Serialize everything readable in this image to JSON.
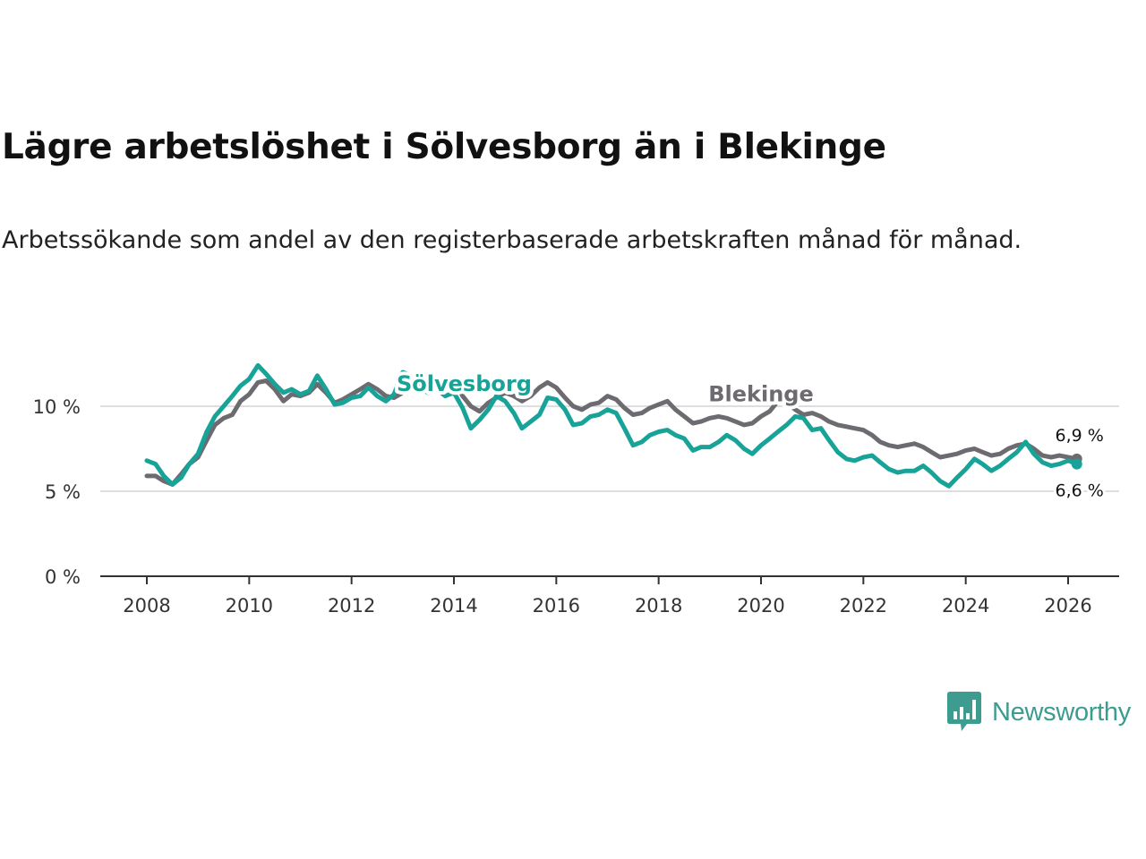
{
  "title": "Lägre arbetslöshet i Sölvesborg än i Blekinge",
  "subtitle": "Arbetssökande som andel av den registerbaserade arbetskraften månad för månad.",
  "brand": {
    "name": "Newsworthy",
    "icon": "newsworthy-logo-icon",
    "color": "#3d9b8f"
  },
  "chart_data": {
    "type": "line",
    "title": "Lägre arbetslöshet i Sölvesborg än i Blekinge",
    "xlabel": "",
    "ylabel": "",
    "xlim": [
      2007.5,
      2027.0
    ],
    "ylim": [
      0,
      13
    ],
    "x_ticks": [
      2008,
      2010,
      2012,
      2014,
      2016,
      2018,
      2020,
      2022,
      2024,
      2026
    ],
    "x_tick_labels": [
      "2008",
      "2010",
      "2012",
      "2014",
      "2016",
      "2018",
      "2020",
      "2022",
      "2024",
      "2026"
    ],
    "y_ticks": [
      0,
      5,
      10
    ],
    "y_tick_labels": [
      "0 %",
      "5 %",
      "10 %"
    ],
    "grid": "horizontal",
    "series": [
      {
        "name": "Blekinge",
        "color": "#6e6b70",
        "end_label": "6,9 %",
        "points": [
          [
            2008.0,
            5.9
          ],
          [
            2008.17,
            5.9
          ],
          [
            2008.33,
            5.6
          ],
          [
            2008.5,
            5.4
          ],
          [
            2008.67,
            6.0
          ],
          [
            2008.83,
            6.6
          ],
          [
            2009.0,
            7.0
          ],
          [
            2009.17,
            8.0
          ],
          [
            2009.33,
            8.9
          ],
          [
            2009.5,
            9.3
          ],
          [
            2009.67,
            9.5
          ],
          [
            2009.83,
            10.3
          ],
          [
            2010.0,
            10.7
          ],
          [
            2010.17,
            11.4
          ],
          [
            2010.33,
            11.5
          ],
          [
            2010.5,
            11.0
          ],
          [
            2010.67,
            10.3
          ],
          [
            2010.83,
            10.7
          ],
          [
            2011.0,
            10.6
          ],
          [
            2011.17,
            10.8
          ],
          [
            2011.33,
            11.3
          ],
          [
            2011.5,
            10.8
          ],
          [
            2011.67,
            10.2
          ],
          [
            2011.83,
            10.4
          ],
          [
            2012.0,
            10.7
          ],
          [
            2012.17,
            11.0
          ],
          [
            2012.33,
            11.3
          ],
          [
            2012.5,
            11.0
          ],
          [
            2012.67,
            10.6
          ],
          [
            2012.83,
            10.5
          ],
          [
            2013.0,
            10.8
          ],
          [
            2013.17,
            11.3
          ],
          [
            2013.33,
            11.5
          ],
          [
            2013.5,
            11.3
          ],
          [
            2013.67,
            11.0
          ],
          [
            2013.83,
            11.2
          ],
          [
            2014.0,
            11.6
          ],
          [
            2014.17,
            10.6
          ],
          [
            2014.33,
            10.0
          ],
          [
            2014.5,
            9.7
          ],
          [
            2014.67,
            10.2
          ],
          [
            2014.83,
            10.5
          ],
          [
            2015.0,
            10.8
          ],
          [
            2015.17,
            10.6
          ],
          [
            2015.33,
            10.3
          ],
          [
            2015.5,
            10.6
          ],
          [
            2015.67,
            11.1
          ],
          [
            2015.83,
            11.4
          ],
          [
            2016.0,
            11.1
          ],
          [
            2016.17,
            10.5
          ],
          [
            2016.33,
            10.0
          ],
          [
            2016.5,
            9.8
          ],
          [
            2016.67,
            10.1
          ],
          [
            2016.83,
            10.2
          ],
          [
            2017.0,
            10.6
          ],
          [
            2017.17,
            10.4
          ],
          [
            2017.33,
            9.9
          ],
          [
            2017.5,
            9.5
          ],
          [
            2017.67,
            9.6
          ],
          [
            2017.83,
            9.9
          ],
          [
            2018.0,
            10.1
          ],
          [
            2018.17,
            10.3
          ],
          [
            2018.33,
            9.8
          ],
          [
            2018.5,
            9.4
          ],
          [
            2018.67,
            9.0
          ],
          [
            2018.83,
            9.1
          ],
          [
            2019.0,
            9.3
          ],
          [
            2019.17,
            9.4
          ],
          [
            2019.33,
            9.3
          ],
          [
            2019.5,
            9.1
          ],
          [
            2019.67,
            8.9
          ],
          [
            2019.83,
            9.0
          ],
          [
            2020.0,
            9.4
          ],
          [
            2020.17,
            9.7
          ],
          [
            2020.33,
            10.3
          ],
          [
            2020.5,
            10.2
          ],
          [
            2020.67,
            9.8
          ],
          [
            2020.83,
            9.5
          ],
          [
            2021.0,
            9.6
          ],
          [
            2021.17,
            9.4
          ],
          [
            2021.33,
            9.1
          ],
          [
            2021.5,
            8.9
          ],
          [
            2021.67,
            8.8
          ],
          [
            2021.83,
            8.7
          ],
          [
            2022.0,
            8.6
          ],
          [
            2022.17,
            8.3
          ],
          [
            2022.33,
            7.9
          ],
          [
            2022.5,
            7.7
          ],
          [
            2022.67,
            7.6
          ],
          [
            2022.83,
            7.7
          ],
          [
            2023.0,
            7.8
          ],
          [
            2023.17,
            7.6
          ],
          [
            2023.33,
            7.3
          ],
          [
            2023.5,
            7.0
          ],
          [
            2023.67,
            7.1
          ],
          [
            2023.83,
            7.2
          ],
          [
            2024.0,
            7.4
          ],
          [
            2024.17,
            7.5
          ],
          [
            2024.33,
            7.3
          ],
          [
            2024.5,
            7.1
          ],
          [
            2024.67,
            7.2
          ],
          [
            2024.83,
            7.5
          ],
          [
            2025.0,
            7.7
          ],
          [
            2025.17,
            7.8
          ],
          [
            2025.33,
            7.5
          ],
          [
            2025.5,
            7.1
          ],
          [
            2025.67,
            7.0
          ],
          [
            2025.83,
            7.1
          ],
          [
            2026.0,
            7.0
          ],
          [
            2026.17,
            6.9
          ]
        ]
      },
      {
        "name": "Sölvesborg",
        "color": "#17a398",
        "end_label": "6,6 %",
        "points": [
          [
            2008.0,
            6.8
          ],
          [
            2008.17,
            6.6
          ],
          [
            2008.33,
            5.9
          ],
          [
            2008.5,
            5.4
          ],
          [
            2008.67,
            5.8
          ],
          [
            2008.83,
            6.6
          ],
          [
            2009.0,
            7.2
          ],
          [
            2009.17,
            8.5
          ],
          [
            2009.33,
            9.4
          ],
          [
            2009.5,
            10.0
          ],
          [
            2009.67,
            10.6
          ],
          [
            2009.83,
            11.2
          ],
          [
            2010.0,
            11.6
          ],
          [
            2010.17,
            12.4
          ],
          [
            2010.33,
            11.9
          ],
          [
            2010.5,
            11.3
          ],
          [
            2010.67,
            10.8
          ],
          [
            2010.83,
            11.0
          ],
          [
            2011.0,
            10.7
          ],
          [
            2011.17,
            10.9
          ],
          [
            2011.33,
            11.8
          ],
          [
            2011.5,
            11.0
          ],
          [
            2011.67,
            10.1
          ],
          [
            2011.83,
            10.2
          ],
          [
            2012.0,
            10.5
          ],
          [
            2012.17,
            10.6
          ],
          [
            2012.33,
            11.1
          ],
          [
            2012.5,
            10.6
          ],
          [
            2012.67,
            10.3
          ],
          [
            2012.83,
            10.7
          ],
          [
            2013.0,
            12.0
          ],
          [
            2013.17,
            11.8
          ],
          [
            2013.33,
            11.0
          ],
          [
            2013.5,
            10.8
          ],
          [
            2013.67,
            11.0
          ],
          [
            2013.83,
            10.6
          ],
          [
            2014.0,
            10.8
          ],
          [
            2014.17,
            9.9
          ],
          [
            2014.33,
            8.7
          ],
          [
            2014.5,
            9.2
          ],
          [
            2014.67,
            9.8
          ],
          [
            2014.83,
            10.6
          ],
          [
            2015.0,
            10.3
          ],
          [
            2015.17,
            9.6
          ],
          [
            2015.33,
            8.7
          ],
          [
            2015.5,
            9.1
          ],
          [
            2015.67,
            9.5
          ],
          [
            2015.83,
            10.5
          ],
          [
            2016.0,
            10.4
          ],
          [
            2016.17,
            9.8
          ],
          [
            2016.33,
            8.9
          ],
          [
            2016.5,
            9.0
          ],
          [
            2016.67,
            9.4
          ],
          [
            2016.83,
            9.5
          ],
          [
            2017.0,
            9.8
          ],
          [
            2017.17,
            9.6
          ],
          [
            2017.33,
            8.7
          ],
          [
            2017.5,
            7.7
          ],
          [
            2017.67,
            7.9
          ],
          [
            2017.83,
            8.3
          ],
          [
            2018.0,
            8.5
          ],
          [
            2018.17,
            8.6
          ],
          [
            2018.33,
            8.3
          ],
          [
            2018.5,
            8.1
          ],
          [
            2018.67,
            7.4
          ],
          [
            2018.83,
            7.6
          ],
          [
            2019.0,
            7.6
          ],
          [
            2019.17,
            7.9
          ],
          [
            2019.33,
            8.3
          ],
          [
            2019.5,
            8.0
          ],
          [
            2019.67,
            7.5
          ],
          [
            2019.83,
            7.2
          ],
          [
            2020.0,
            7.7
          ],
          [
            2020.17,
            8.1
          ],
          [
            2020.33,
            8.5
          ],
          [
            2020.5,
            8.9
          ],
          [
            2020.67,
            9.4
          ],
          [
            2020.83,
            9.3
          ],
          [
            2021.0,
            8.6
          ],
          [
            2021.17,
            8.7
          ],
          [
            2021.33,
            8.0
          ],
          [
            2021.5,
            7.3
          ],
          [
            2021.67,
            6.9
          ],
          [
            2021.83,
            6.8
          ],
          [
            2022.0,
            7.0
          ],
          [
            2022.17,
            7.1
          ],
          [
            2022.33,
            6.7
          ],
          [
            2022.5,
            6.3
          ],
          [
            2022.67,
            6.1
          ],
          [
            2022.83,
            6.2
          ],
          [
            2023.0,
            6.2
          ],
          [
            2023.17,
            6.5
          ],
          [
            2023.33,
            6.1
          ],
          [
            2023.5,
            5.6
          ],
          [
            2023.67,
            5.3
          ],
          [
            2023.83,
            5.8
          ],
          [
            2024.0,
            6.3
          ],
          [
            2024.17,
            6.9
          ],
          [
            2024.33,
            6.6
          ],
          [
            2024.5,
            6.2
          ],
          [
            2024.67,
            6.5
          ],
          [
            2024.83,
            6.9
          ],
          [
            2025.0,
            7.3
          ],
          [
            2025.17,
            7.9
          ],
          [
            2025.33,
            7.2
          ],
          [
            2025.5,
            6.7
          ],
          [
            2025.67,
            6.5
          ],
          [
            2025.83,
            6.6
          ],
          [
            2026.0,
            6.8
          ],
          [
            2026.17,
            6.6
          ]
        ]
      }
    ],
    "annotations": [
      {
        "text": "Sölvesborg",
        "series": "Sölvesborg",
        "x": 2014.2,
        "y": 10.9
      },
      {
        "text": "Blekinge",
        "series": "Blekinge",
        "x": 2020.0,
        "y": 10.3
      }
    ]
  }
}
